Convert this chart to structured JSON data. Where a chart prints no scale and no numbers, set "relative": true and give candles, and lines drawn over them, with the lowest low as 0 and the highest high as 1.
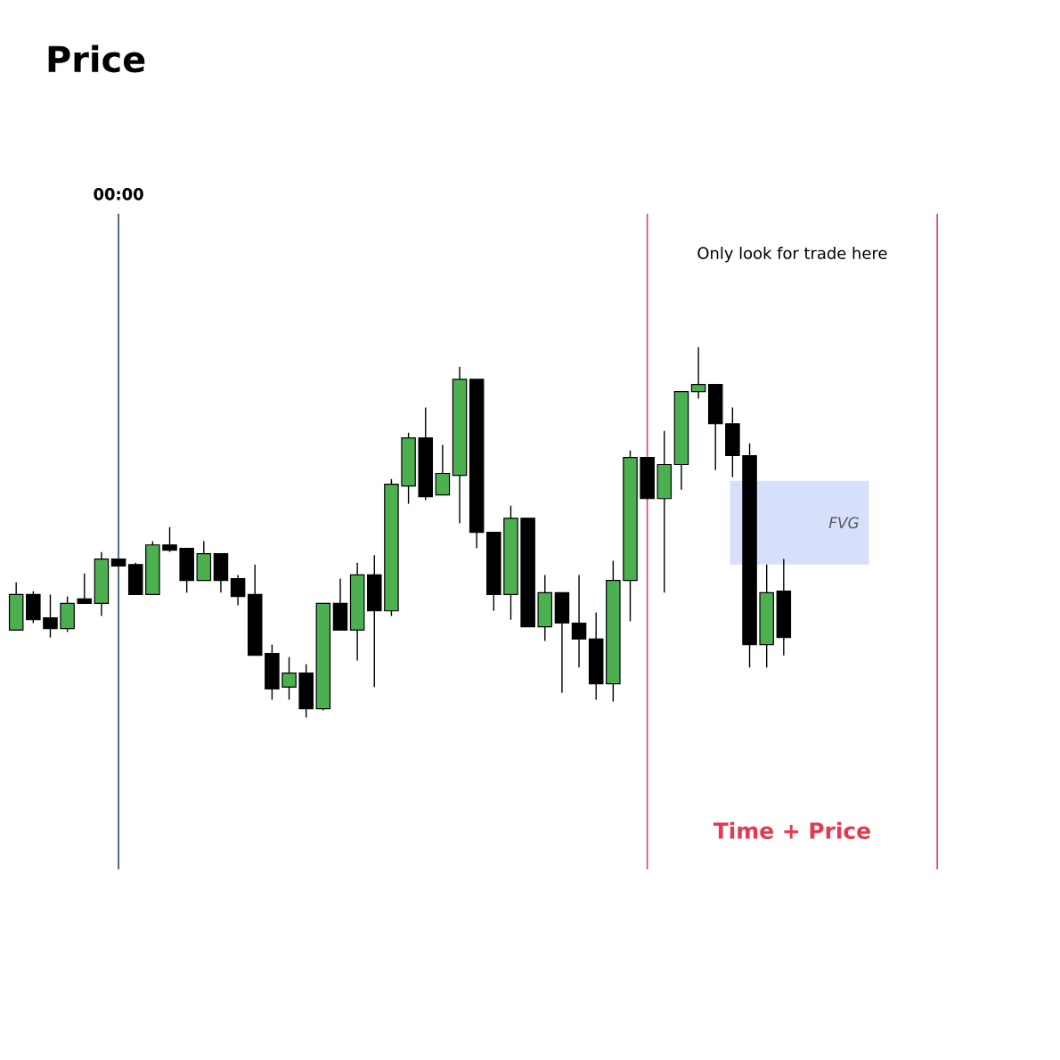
{
  "chart_data": {
    "type": "candlestick",
    "title": "Price",
    "relative": true,
    "categories": [
      null,
      null,
      null,
      null,
      null,
      null,
      null,
      null,
      null,
      null,
      null,
      null,
      null,
      null,
      null,
      null,
      null,
      null,
      null,
      null,
      null,
      null,
      null,
      null,
      null,
      null,
      null,
      null,
      null,
      null,
      null,
      null,
      null,
      null,
      null,
      null,
      null,
      null,
      null,
      null,
      null,
      null,
      null,
      null,
      null,
      null,
      null,
      null,
      null,
      null,
      null,
      null,
      null,
      null,
      null,
      null,
      null,
      null,
      null,
      null,
      null,
      null
    ],
    "ohlc": [
      [
        0.236,
        0.365,
        0.236,
        0.332
      ],
      [
        0.332,
        0.341,
        0.255,
        0.264
      ],
      [
        0.269,
        0.332,
        0.216,
        0.24
      ],
      [
        0.24,
        0.327,
        0.231,
        0.308
      ],
      [
        0.313,
        0.389,
        0.308,
        0.308
      ],
      [
        0.308,
        0.447,
        0.274,
        0.428
      ],
      [
        0.428,
        0.428,
        0.409,
        0.409
      ],
      [
        0.413,
        0.418,
        0.332,
        0.332
      ],
      [
        0.332,
        0.476,
        0.332,
        0.466
      ],
      [
        0.466,
        0.514,
        0.447,
        0.452
      ],
      [
        0.457,
        0.457,
        0.337,
        0.37
      ],
      [
        0.37,
        0.476,
        0.37,
        0.442
      ],
      [
        0.442,
        0.442,
        0.337,
        0.37
      ],
      [
        0.375,
        0.385,
        0.303,
        0.327
      ],
      [
        0.332,
        0.413,
        0.168,
        0.168
      ],
      [
        0.173,
        0.197,
        0.048,
        0.077
      ],
      [
        0.082,
        0.163,
        0.048,
        0.12
      ],
      [
        0.12,
        0.144,
        0.0,
        0.024
      ],
      [
        0.024,
        0.308,
        0.019,
        0.308
      ],
      [
        0.308,
        0.375,
        0.236,
        0.236
      ],
      [
        0.236,
        0.418,
        0.154,
        0.385
      ],
      [
        0.385,
        0.438,
        0.082,
        0.288
      ],
      [
        0.288,
        0.644,
        0.274,
        0.63
      ],
      [
        0.625,
        0.769,
        0.577,
        0.755
      ],
      [
        0.755,
        0.837,
        0.587,
        0.596
      ],
      [
        0.601,
        0.736,
        0.601,
        0.659
      ],
      [
        0.654,
        0.947,
        0.524,
        0.913
      ],
      [
        0.913,
        0.913,
        0.457,
        0.5
      ],
      [
        0.5,
        0.5,
        0.288,
        0.332
      ],
      [
        0.332,
        0.572,
        0.264,
        0.538
      ],
      [
        0.538,
        0.538,
        0.245,
        0.245
      ],
      [
        0.245,
        0.385,
        0.207,
        0.337
      ],
      [
        0.337,
        0.337,
        0.067,
        0.255
      ],
      [
        0.255,
        0.385,
        0.135,
        0.212
      ],
      [
        0.212,
        0.284,
        0.048,
        0.091
      ],
      [
        0.091,
        0.423,
        0.043,
        0.37
      ],
      [
        0.37,
        0.721,
        0.26,
        0.702
      ],
      [
        0.702,
        0.702,
        0.591,
        0.591
      ],
      [
        0.591,
        0.774,
        0.337,
        0.683
      ],
      [
        0.683,
        0.88,
        0.615,
        0.88
      ],
      [
        0.88,
        1.0,
        0.861,
        0.899
      ],
      [
        0.899,
        0.899,
        0.668,
        0.793
      ],
      [
        0.793,
        0.837,
        0.649,
        0.707
      ],
      [
        0.707,
        0.74,
        0.135,
        0.197
      ],
      [
        0.197,
        0.413,
        0.135,
        0.337
      ],
      [
        0.341,
        0.428,
        0.168,
        0.216
      ],
      null,
      null,
      null,
      null,
      null,
      null,
      null,
      null,
      null,
      null,
      null,
      null,
      null,
      null,
      null,
      null
    ],
    "bands": [
      {
        "axis": "y",
        "from": 0.413,
        "to": 0.639,
        "label": "FVG",
        "color": "#d6e0fb"
      }
    ],
    "annotations": [
      "00:00",
      "Only look for trade here",
      "Time + Price"
    ]
  }
}
